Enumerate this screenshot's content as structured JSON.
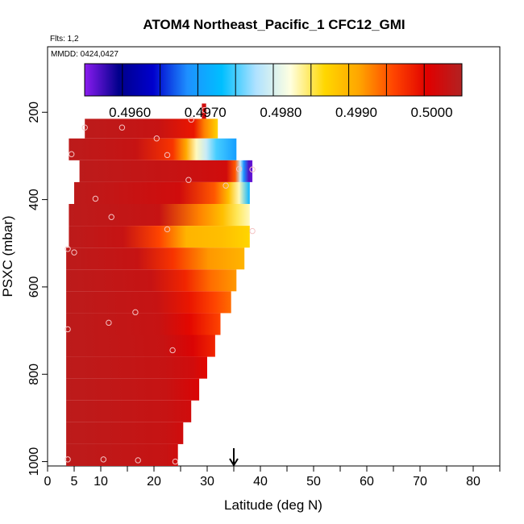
{
  "chart_data": {
    "type": "heatmap",
    "title": "ATOM4 Northeast_Pacific_1 CFC12_GMI",
    "flights_text": "Flts: 1,2",
    "mmdd_text": "MMDD: 0424,0427",
    "xlabel": "Latitude (deg N)",
    "ylabel": "PSXC (mbar)",
    "xlim": [
      0,
      85
    ],
    "ylim": [
      1010,
      50
    ],
    "x_ticks": [
      0,
      5,
      10,
      20,
      30,
      40,
      50,
      60,
      70,
      80
    ],
    "x_minor_ticks": [
      15,
      25,
      35,
      45,
      55,
      65,
      75,
      85
    ],
    "y_ticks": [
      200,
      400,
      600,
      800,
      1000
    ],
    "colorbar": {
      "vmin": 0.4954,
      "vmax": 0.5004,
      "tick_values": [
        0.496,
        0.497,
        0.498,
        0.499,
        0.5
      ],
      "tick_labels": [
        "0.4960",
        "0.4970",
        "0.4980",
        "0.4990",
        "0.5000"
      ],
      "colors": [
        "#8b1cf0",
        "#00008b",
        "#0000cd",
        "#1e90ff",
        "#00bfff",
        "#b0e2ff",
        "#ffffe0",
        "#ffd700",
        "#ffa500",
        "#ff4500",
        "#e00000",
        "#b22222"
      ]
    },
    "arrow_latitude": 35,
    "rows": [
      {
        "p0": 180,
        "p1": 215,
        "lat0": 29.0,
        "lat1": 29.8,
        "stops": [
          [
            0,
            0.5001
          ]
        ]
      },
      {
        "p0": 215,
        "p1": 260,
        "lat0": 7.0,
        "lat1": 32.0,
        "stops": [
          [
            0,
            0.5003
          ],
          [
            0.55,
            0.5002
          ],
          [
            0.82,
            0.4998
          ],
          [
            0.9,
            0.4992
          ],
          [
            1,
            0.4986
          ]
        ]
      },
      {
        "p0": 260,
        "p1": 310,
        "lat0": 4.0,
        "lat1": 35.5,
        "stops": [
          [
            0,
            0.5003
          ],
          [
            0.4,
            0.5002
          ],
          [
            0.62,
            0.4996
          ],
          [
            0.7,
            0.499
          ],
          [
            0.76,
            0.4982
          ],
          [
            0.82,
            0.4978
          ],
          [
            0.88,
            0.4974
          ],
          [
            1,
            0.4969
          ]
        ]
      },
      {
        "p0": 310,
        "p1": 360,
        "lat0": 6.0,
        "lat1": 38.5,
        "stops": [
          [
            0,
            0.5003
          ],
          [
            0.55,
            0.5002
          ],
          [
            0.85,
            0.5001
          ],
          [
            0.9,
            0.4994
          ],
          [
            0.93,
            0.4978
          ],
          [
            0.95,
            0.4968
          ],
          [
            0.98,
            0.4956
          ],
          [
            1,
            0.4955
          ]
        ]
      },
      {
        "p0": 360,
        "p1": 410,
        "lat0": 5.0,
        "lat1": 38.0,
        "stops": [
          [
            0,
            0.5003
          ],
          [
            0.6,
            0.5001
          ],
          [
            0.8,
            0.4994
          ],
          [
            0.88,
            0.4988
          ],
          [
            0.94,
            0.4982
          ],
          [
            1,
            0.4971
          ]
        ]
      },
      {
        "p0": 410,
        "p1": 460,
        "lat0": 4.0,
        "lat1": 38.0,
        "stops": [
          [
            0,
            0.5003
          ],
          [
            0.5,
            0.5002
          ],
          [
            0.72,
            0.4992
          ],
          [
            0.85,
            0.4988
          ],
          [
            0.93,
            0.4984
          ],
          [
            1,
            0.4982
          ]
        ]
      },
      {
        "p0": 460,
        "p1": 510,
        "lat0": 4.0,
        "lat1": 38.0,
        "stops": [
          [
            0,
            0.5003
          ],
          [
            0.3,
            0.5002
          ],
          [
            0.5,
            0.4995
          ],
          [
            0.65,
            0.4989
          ],
          [
            0.85,
            0.4988
          ],
          [
            1,
            0.4986
          ]
        ]
      },
      {
        "p0": 510,
        "p1": 560,
        "lat0": 3.5,
        "lat1": 37.0,
        "stops": [
          [
            0,
            0.5003
          ],
          [
            0.4,
            0.5002
          ],
          [
            0.6,
            0.4996
          ],
          [
            0.8,
            0.4991
          ],
          [
            1,
            0.4989
          ]
        ]
      },
      {
        "p0": 560,
        "p1": 610,
        "lat0": 3.5,
        "lat1": 35.5,
        "stops": [
          [
            0,
            0.5003
          ],
          [
            0.5,
            0.5002
          ],
          [
            0.7,
            0.4997
          ],
          [
            0.85,
            0.4993
          ],
          [
            1,
            0.4991
          ]
        ]
      },
      {
        "p0": 610,
        "p1": 660,
        "lat0": 3.5,
        "lat1": 34.5,
        "stops": [
          [
            0,
            0.5003
          ],
          [
            0.55,
            0.5002
          ],
          [
            0.75,
            0.4998
          ],
          [
            0.9,
            0.4995
          ],
          [
            1,
            0.4993
          ]
        ]
      },
      {
        "p0": 660,
        "p1": 710,
        "lat0": 3.5,
        "lat1": 32.5,
        "stops": [
          [
            0,
            0.5003
          ],
          [
            0.6,
            0.5002
          ],
          [
            0.8,
            0.4999
          ],
          [
            1,
            0.4995
          ]
        ]
      },
      {
        "p0": 710,
        "p1": 760,
        "lat0": 3.5,
        "lat1": 31.5,
        "stops": [
          [
            0,
            0.5003
          ],
          [
            0.65,
            0.5002
          ],
          [
            0.85,
            0.5
          ],
          [
            1,
            0.4997
          ]
        ]
      },
      {
        "p0": 760,
        "p1": 810,
        "lat0": 3.5,
        "lat1": 30.0,
        "stops": [
          [
            0,
            0.5003
          ],
          [
            0.7,
            0.5002
          ],
          [
            0.9,
            0.5001
          ],
          [
            1,
            0.4999
          ]
        ]
      },
      {
        "p0": 810,
        "p1": 860,
        "lat0": 3.5,
        "lat1": 28.5,
        "stops": [
          [
            0,
            0.5003
          ],
          [
            0.75,
            0.5002
          ],
          [
            1,
            0.5
          ]
        ]
      },
      {
        "p0": 860,
        "p1": 910,
        "lat0": 3.5,
        "lat1": 27.0,
        "stops": [
          [
            0,
            0.5003
          ],
          [
            0.8,
            0.5002
          ],
          [
            1,
            0.5001
          ]
        ]
      },
      {
        "p0": 910,
        "p1": 960,
        "lat0": 3.5,
        "lat1": 25.5,
        "stops": [
          [
            0,
            0.5003
          ],
          [
            0.85,
            0.5002
          ],
          [
            1,
            0.5001
          ]
        ]
      },
      {
        "p0": 960,
        "p1": 1010,
        "lat0": 3.5,
        "lat1": 24.5,
        "stops": [
          [
            0,
            0.5003
          ],
          [
            0.9,
            0.5002
          ],
          [
            1,
            0.5001
          ]
        ]
      }
    ],
    "sample_points": [
      {
        "lat": 29.5,
        "p": 195
      },
      {
        "lat": 27.0,
        "p": 217
      },
      {
        "lat": 7.0,
        "p": 235
      },
      {
        "lat": 14.0,
        "p": 235
      },
      {
        "lat": 20.5,
        "p": 260
      },
      {
        "lat": 4.5,
        "p": 296
      },
      {
        "lat": 22.5,
        "p": 298
      },
      {
        "lat": 36.0,
        "p": 330
      },
      {
        "lat": 38.5,
        "p": 331
      },
      {
        "lat": 26.5,
        "p": 355
      },
      {
        "lat": 33.5,
        "p": 368
      },
      {
        "lat": 9.0,
        "p": 398
      },
      {
        "lat": 12.0,
        "p": 440
      },
      {
        "lat": 22.5,
        "p": 468
      },
      {
        "lat": 38.5,
        "p": 472
      },
      {
        "lat": 3.8,
        "p": 513
      },
      {
        "lat": 5.0,
        "p": 521
      },
      {
        "lat": 16.5,
        "p": 658
      },
      {
        "lat": 11.5,
        "p": 682
      },
      {
        "lat": 3.8,
        "p": 697
      },
      {
        "lat": 23.5,
        "p": 745
      },
      {
        "lat": 3.8,
        "p": 995
      },
      {
        "lat": 10.5,
        "p": 995
      },
      {
        "lat": 17.0,
        "p": 997
      },
      {
        "lat": 24.0,
        "p": 1000
      }
    ]
  }
}
